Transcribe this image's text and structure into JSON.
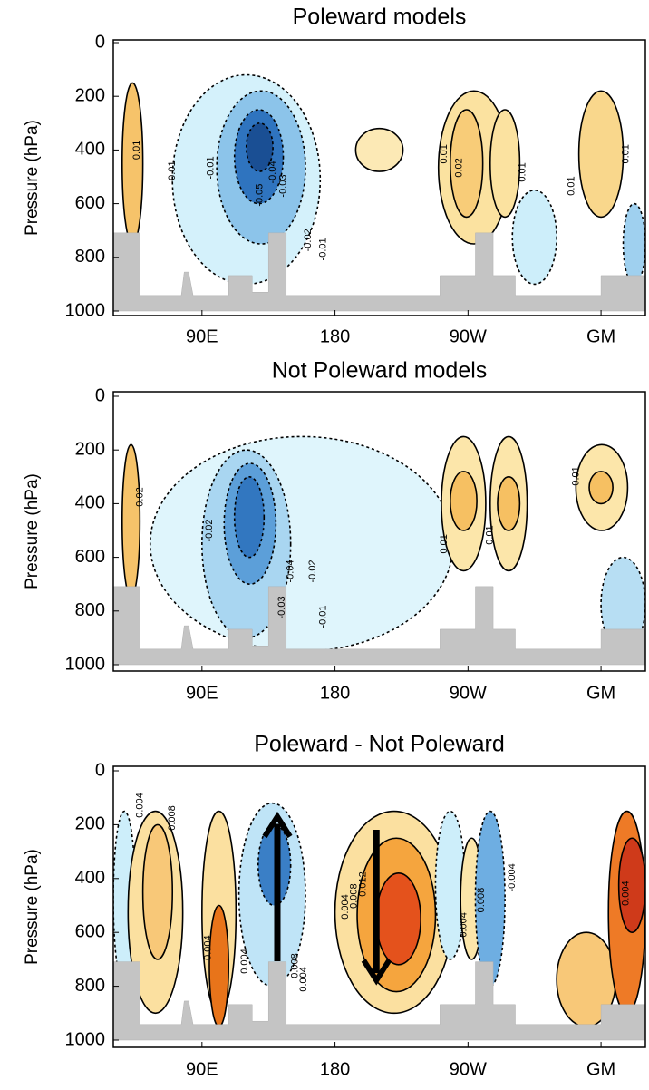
{
  "chart_data": [
    {
      "type": "contour",
      "title": "Poleward models",
      "ylabel": "Pressure (hPa)",
      "xlim": [
        30,
        390
      ],
      "xticks": [
        {
          "value": 90,
          "label": "90E"
        },
        180,
        {
          "value": 270,
          "label": "90W"
        },
        {
          "value": 360,
          "label": "GM"
        }
      ],
      "ylim": [
        0,
        1000
      ],
      "yticks": [
        0,
        200,
        400,
        600,
        800,
        1000
      ],
      "y_reversed": true,
      "features": [
        {
          "lon": [
            70,
            170
          ],
          "p": [
            120,
            900
          ],
          "color": "#d4f1fb",
          "line": "dashed"
        },
        {
          "lon": [
            100,
            160
          ],
          "p": [
            180,
            750
          ],
          "color": "#8cc4ea",
          "line": "dashed"
        },
        {
          "lon": [
            112,
            145
          ],
          "p": [
            250,
            600
          ],
          "color": "#2f74bf",
          "line": "dashed"
        },
        {
          "lon": [
            120,
            138
          ],
          "p": [
            300,
            480
          ],
          "color": "#1a4f94",
          "line": "dashed"
        },
        {
          "lon": [
            36,
            50
          ],
          "p": [
            150,
            750
          ],
          "color": "#f6c36a",
          "line": "solid"
        },
        {
          "lon": [
            194,
            226
          ],
          "p": [
            320,
            480
          ],
          "color": "#fce9b5",
          "line": "solid"
        },
        {
          "lon": [
            250,
            298
          ],
          "p": [
            180,
            750
          ],
          "color": "#fbe2a0",
          "line": "solid"
        },
        {
          "lon": [
            258,
            280
          ],
          "p": [
            250,
            650
          ],
          "color": "#f8cc78",
          "line": "solid"
        },
        {
          "lon": [
            285,
            305
          ],
          "p": [
            250,
            650
          ],
          "color": "#fbe2a0",
          "line": "solid"
        },
        {
          "lon": [
            345,
            375
          ],
          "p": [
            180,
            650
          ],
          "color": "#f9d78c",
          "line": "solid"
        },
        {
          "lon": [
            300,
            330
          ],
          "p": [
            550,
            900
          ],
          "color": "#cdeefa",
          "line": "dashed"
        },
        {
          "lon": [
            375,
            390
          ],
          "p": [
            600,
            900
          ],
          "color": "#9fd0ef",
          "line": "dashed"
        }
      ],
      "contour_labels": [
        {
          "value": 0.01,
          "lon": 46,
          "p": 400
        },
        {
          "value": -0.01,
          "lon": 70,
          "p": 483
        },
        {
          "value": -0.01,
          "lon": 96,
          "p": 466
        },
        {
          "value": -0.04,
          "lon": 138,
          "p": 483
        },
        {
          "value": -0.05,
          "lon": 129,
          "p": 568
        },
        {
          "value": -0.03,
          "lon": 145,
          "p": 534
        },
        {
          "value": -0.02,
          "lon": 162,
          "p": 736
        },
        {
          "value": -0.01,
          "lon": 172,
          "p": 770
        },
        {
          "value": 0.01,
          "lon": 254,
          "p": 415
        },
        {
          "value": 0.02,
          "lon": 264,
          "p": 466
        },
        {
          "value": 0.01,
          "lon": 307,
          "p": 483
        },
        {
          "value": 0.01,
          "lon": 340,
          "p": 534
        },
        {
          "value": 0.01,
          "lon": 377,
          "p": 415
        }
      ]
    },
    {
      "type": "contour",
      "title": "Not Poleward models",
      "ylabel": "Pressure (hPa)",
      "xlim": [
        30,
        390
      ],
      "xticks": [
        {
          "value": 90,
          "label": "90E"
        },
        180,
        {
          "value": 270,
          "label": "90W"
        },
        {
          "value": 360,
          "label": "GM"
        }
      ],
      "ylim": [
        0,
        1000
      ],
      "yticks": [
        0,
        200,
        400,
        600,
        800,
        1000
      ],
      "y_reversed": true,
      "features": [
        {
          "lon": [
            55,
            260
          ],
          "p": [
            150,
            950
          ],
          "color": "#dff5fc",
          "line": "dashed"
        },
        {
          "lon": [
            90,
            150
          ],
          "p": [
            200,
            900
          ],
          "color": "#a9d6f1",
          "line": "dashed"
        },
        {
          "lon": [
            105,
            140
          ],
          "p": [
            250,
            700
          ],
          "color": "#5c9fd9",
          "line": "dashed"
        },
        {
          "lon": [
            112,
            132
          ],
          "p": [
            300,
            600
          ],
          "color": "#3277c0",
          "line": "dashed"
        },
        {
          "lon": [
            36,
            48
          ],
          "p": [
            180,
            750
          ],
          "color": "#f6c36a",
          "line": "solid"
        },
        {
          "lon": [
            252,
            282
          ],
          "p": [
            150,
            650
          ],
          "color": "#fce6aa",
          "line": "solid"
        },
        {
          "lon": [
            258,
            276
          ],
          "p": [
            280,
            500
          ],
          "color": "#f6c062",
          "line": "solid"
        },
        {
          "lon": [
            285,
            310
          ],
          "p": [
            150,
            650
          ],
          "color": "#fce6aa",
          "line": "solid"
        },
        {
          "lon": [
            290,
            305
          ],
          "p": [
            300,
            500
          ],
          "color": "#f6c062",
          "line": "solid"
        },
        {
          "lon": [
            343,
            378
          ],
          "p": [
            180,
            500
          ],
          "color": "#fce6aa",
          "line": "solid"
        },
        {
          "lon": [
            352,
            368
          ],
          "p": [
            280,
            400
          ],
          "color": "#f6c062",
          "line": "solid"
        },
        {
          "lon": [
            360,
            390
          ],
          "p": [
            600,
            950
          ],
          "color": "#b7def3",
          "line": "dashed"
        }
      ],
      "contour_labels": [
        {
          "value": 0.02,
          "lon": 48,
          "p": 375
        },
        {
          "value": -0.02,
          "lon": 95,
          "p": 500
        },
        {
          "value": -0.04,
          "lon": 150,
          "p": 652
        },
        {
          "value": -0.02,
          "lon": 165,
          "p": 652
        },
        {
          "value": -0.03,
          "lon": 144,
          "p": 787
        },
        {
          "value": -0.01,
          "lon": 172,
          "p": 821
        },
        {
          "value": 0.01,
          "lon": 254,
          "p": 550
        },
        {
          "value": 0.01,
          "lon": 285,
          "p": 517
        },
        {
          "value": 0.01,
          "lon": 343,
          "p": 297
        }
      ]
    },
    {
      "type": "contour",
      "title": "Poleward - Not Poleward",
      "ylabel": "Pressure (hPa)",
      "xlim": [
        30,
        390
      ],
      "xticks": [
        {
          "value": 90,
          "label": "90E"
        },
        180,
        {
          "value": 270,
          "label": "90W"
        },
        {
          "value": 360,
          "label": "GM"
        }
      ],
      "ylim": [
        0,
        1000
      ],
      "yticks": [
        0,
        200,
        400,
        600,
        800,
        1000
      ],
      "y_reversed": true,
      "features": [
        {
          "lon": [
            30,
            45
          ],
          "p": [
            150,
            800
          ],
          "color": "#cdeefa",
          "line": "dashed"
        },
        {
          "lon": [
            40,
            77
          ],
          "p": [
            150,
            900
          ],
          "color": "#fbe0a0",
          "line": "solid"
        },
        {
          "lon": [
            50,
            70
          ],
          "p": [
            200,
            700
          ],
          "color": "#f8c878",
          "line": "solid"
        },
        {
          "lon": [
            90,
            113
          ],
          "p": [
            150,
            900
          ],
          "color": "#fbe0a0",
          "line": "solid"
        },
        {
          "lon": [
            95,
            108
          ],
          "p": [
            500,
            950
          ],
          "color": "#e8741a",
          "line": "solid"
        },
        {
          "lon": [
            115,
            160
          ],
          "p": [
            120,
            800
          ],
          "color": "#bfe4f7",
          "line": "dashed"
        },
        {
          "lon": [
            128,
            150
          ],
          "p": [
            200,
            500
          ],
          "color": "#3a7fc6",
          "line": "dashed"
        },
        {
          "lon": [
            180,
            260
          ],
          "p": [
            150,
            900
          ],
          "color": "#fbe0a0",
          "line": "solid"
        },
        {
          "lon": [
            195,
            248
          ],
          "p": [
            250,
            820
          ],
          "color": "#f5a53e",
          "line": "solid"
        },
        {
          "lon": [
            208,
            238
          ],
          "p": [
            380,
            720
          ],
          "color": "#e4521c",
          "line": "solid"
        },
        {
          "lon": [
            248,
            268
          ],
          "p": [
            150,
            700
          ],
          "color": "#cdeefa",
          "line": "dashed"
        },
        {
          "lon": [
            265,
            280
          ],
          "p": [
            250,
            700
          ],
          "color": "#fce6aa",
          "line": "solid"
        },
        {
          "lon": [
            275,
            295
          ],
          "p": [
            150,
            800
          ],
          "color": "#6eaee2",
          "line": "dashed"
        },
        {
          "lon": [
            330,
            370
          ],
          "p": [
            600,
            950
          ],
          "color": "#f8c878",
          "line": "solid"
        },
        {
          "lon": [
            365,
            390
          ],
          "p": [
            150,
            900
          ],
          "color": "#ee7a26",
          "line": "solid"
        },
        {
          "lon": [
            372,
            390
          ],
          "p": [
            250,
            600
          ],
          "color": "#cf3a1a",
          "line": "solid"
        }
      ],
      "contour_labels": [
        {
          "value": 0.004,
          "lon": 48,
          "p": 128
        },
        {
          "value": 0.008,
          "lon": 70,
          "p": 175
        },
        {
          "value": 0.004,
          "lon": 94,
          "p": 657
        },
        {
          "value": 0.004,
          "lon": 119,
          "p": 707
        },
        {
          "value": 0.008,
          "lon": 153,
          "p": 724
        },
        {
          "value": 0.004,
          "lon": 159,
          "p": 774
        },
        {
          "value": 0.004,
          "lon": 187,
          "p": 505
        },
        {
          "value": 0.008,
          "lon": 193,
          "p": 465
        },
        {
          "value": 0.012,
          "lon": 199,
          "p": 421
        },
        {
          "value": 0.004,
          "lon": 267,
          "p": 572
        },
        {
          "value": 0.008,
          "lon": 279,
          "p": 480
        },
        {
          "value": -0.004,
          "lon": 300,
          "p": 397
        },
        {
          "value": 0.004,
          "lon": 377,
          "p": 455
        }
      ]
    }
  ]
}
